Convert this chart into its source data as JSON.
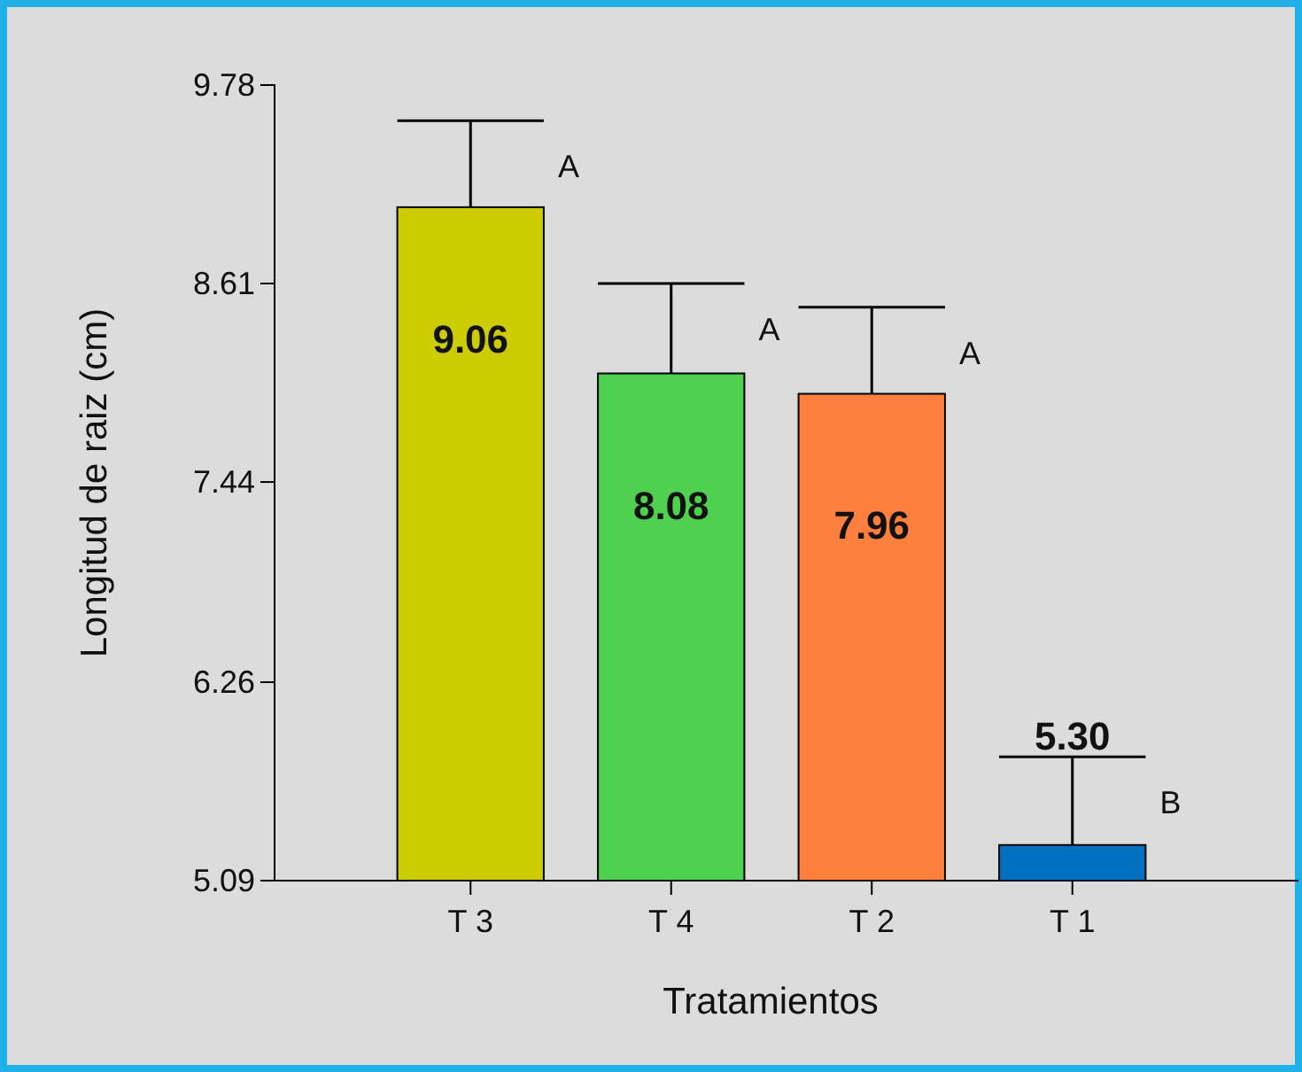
{
  "chart_data": {
    "type": "bar",
    "xlabel": "Tratamientos",
    "ylabel": "Longitud de raiz (cm)",
    "categories": [
      "T 3",
      "T 4",
      "T 2",
      "T 1"
    ],
    "values": [
      9.06,
      8.08,
      7.96,
      5.3
    ],
    "colors": [
      "#cccc00",
      "#4fd14f",
      "#ff7f3f",
      "#0070c0"
    ],
    "errors": [
      [
        9.06,
        9.57
      ],
      [
        8.08,
        8.61
      ],
      [
        7.96,
        8.47
      ],
      [
        5.3,
        5.82
      ]
    ],
    "ylim": [
      5.09,
      9.78
    ],
    "yticks": [
      5.09,
      6.26,
      7.44,
      8.61,
      9.78
    ],
    "data_labels": true,
    "value_labels": [
      "9.06",
      "8.08",
      "7.96",
      "5.30"
    ],
    "annotations": [
      {
        "text": "A",
        "x": "T 3",
        "y": 9.57
      },
      {
        "text": "A",
        "x": "T 4",
        "y": 8.61
      },
      {
        "text": "A",
        "x": "T 2",
        "y": 8.47
      },
      {
        "text": "B",
        "x": "T 1",
        "y": 5.82
      }
    ],
    "grid": false
  }
}
